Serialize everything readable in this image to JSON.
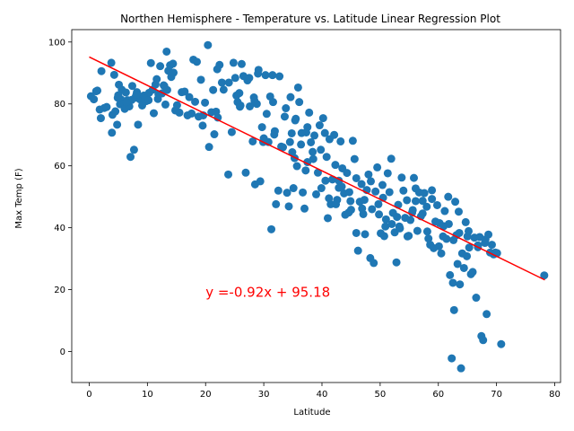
{
  "chart_data": {
    "type": "scatter",
    "title": "Northen Hemisphere - Temperature vs. Latitude Linear Regression Plot",
    "xlabel": "Latitude",
    "ylabel": "Max Temp (F)",
    "xlim": [
      -3,
      81
    ],
    "ylim": [
      -10,
      104
    ],
    "x_ticks": [
      0,
      10,
      20,
      30,
      40,
      50,
      60,
      70,
      80
    ],
    "y_ticks": [
      0,
      20,
      40,
      60,
      80,
      100
    ],
    "grid": false,
    "point_color": "#1f77b4",
    "line_color": "#ff0000",
    "regression": {
      "slope": -0.92,
      "intercept": 95.18,
      "x_range": [
        0,
        78.3
      ]
    },
    "annotation": {
      "text": "y =-0.92x + 95.18",
      "x": 20,
      "y": 19.5,
      "color": "#ff0000"
    },
    "points": [
      [
        0.3,
        82.5
      ],
      [
        0.8,
        81.5
      ],
      [
        1.4,
        84.3
      ],
      [
        1.8,
        78.2
      ],
      [
        2.0,
        75.4
      ],
      [
        2.1,
        90.6
      ],
      [
        2.6,
        78.7
      ],
      [
        3.8,
        93.3
      ],
      [
        3.9,
        70.7
      ],
      [
        4.0,
        76.5
      ],
      [
        4.3,
        89.4
      ],
      [
        4.5,
        77.6
      ],
      [
        4.8,
        73.3
      ],
      [
        4.9,
        82.0
      ],
      [
        5.1,
        86.2
      ],
      [
        5.3,
        79.9
      ],
      [
        5.5,
        81.4
      ],
      [
        5.6,
        84.6
      ],
      [
        5.8,
        80.0
      ],
      [
        6.1,
        78.4
      ],
      [
        6.3,
        83.7
      ],
      [
        6.6,
        81.2
      ],
      [
        6.9,
        79.2
      ],
      [
        7.1,
        62.9
      ],
      [
        7.3,
        81.3
      ],
      [
        7.4,
        85.8
      ],
      [
        7.7,
        65.2
      ],
      [
        8.2,
        83.8
      ],
      [
        8.4,
        73.3
      ],
      [
        8.7,
        81.5
      ],
      [
        9.1,
        79.5
      ],
      [
        9.4,
        82.7
      ],
      [
        9.8,
        80.9
      ],
      [
        10.3,
        83.6
      ],
      [
        10.6,
        93.2
      ],
      [
        10.9,
        84.6
      ],
      [
        11.1,
        77.0
      ],
      [
        11.4,
        86.3
      ],
      [
        11.6,
        88.0
      ],
      [
        11.8,
        81.6
      ],
      [
        12.2,
        92.2
      ],
      [
        12.5,
        83.4
      ],
      [
        12.8,
        86.0
      ],
      [
        13.1,
        79.8
      ],
      [
        13.3,
        96.9
      ],
      [
        13.6,
        90.7
      ],
      [
        13.9,
        92.5
      ],
      [
        14.1,
        88.7
      ],
      [
        14.4,
        93.0
      ],
      [
        14.8,
        77.9
      ],
      [
        15.1,
        79.6
      ],
      [
        15.5,
        77.2
      ],
      [
        15.9,
        83.8
      ],
      [
        16.9,
        76.3
      ],
      [
        17.6,
        76.9
      ],
      [
        17.9,
        94.3
      ],
      [
        18.2,
        80.7
      ],
      [
        18.5,
        93.6
      ],
      [
        18.8,
        75.9
      ],
      [
        19.2,
        87.8
      ],
      [
        19.5,
        73.0
      ],
      [
        19.9,
        80.4
      ],
      [
        20.4,
        99.0
      ],
      [
        20.6,
        66.1
      ],
      [
        21.0,
        77.3
      ],
      [
        21.3,
        84.5
      ],
      [
        21.8,
        77.5
      ],
      [
        22.1,
        75.6
      ],
      [
        22.4,
        92.6
      ],
      [
        22.8,
        86.9
      ],
      [
        23.1,
        84.6
      ],
      [
        23.9,
        57.2
      ],
      [
        24.5,
        70.9
      ],
      [
        24.8,
        93.3
      ],
      [
        25.1,
        88.4
      ],
      [
        25.3,
        82.7
      ],
      [
        25.5,
        80.6
      ],
      [
        25.9,
        79.1
      ],
      [
        26.2,
        92.9
      ],
      [
        26.5,
        89.0
      ],
      [
        26.9,
        57.8
      ],
      [
        27.2,
        87.6
      ],
      [
        27.6,
        79.2
      ],
      [
        28.1,
        67.9
      ],
      [
        28.3,
        82.1
      ],
      [
        28.5,
        54.0
      ],
      [
        28.8,
        80.0
      ],
      [
        29.1,
        91.0
      ],
      [
        29.4,
        55.0
      ],
      [
        29.7,
        72.5
      ],
      [
        29.9,
        67.7
      ],
      [
        30.3,
        89.3
      ],
      [
        30.5,
        76.8
      ],
      [
        30.8,
        67.7
      ],
      [
        31.1,
        82.4
      ],
      [
        31.3,
        39.5
      ],
      [
        31.5,
        89.3
      ],
      [
        31.9,
        71.2
      ],
      [
        32.1,
        47.6
      ],
      [
        32.5,
        52.0
      ],
      [
        32.7,
        88.9
      ],
      [
        33.3,
        66.0
      ],
      [
        33.6,
        75.9
      ],
      [
        33.8,
        78.6
      ],
      [
        34.0,
        51.3
      ],
      [
        34.3,
        46.9
      ],
      [
        34.6,
        82.2
      ],
      [
        34.8,
        70.5
      ],
      [
        35.1,
        52.8
      ],
      [
        35.3,
        62.5
      ],
      [
        35.5,
        75.2
      ],
      [
        35.7,
        59.9
      ],
      [
        35.9,
        85.3
      ],
      [
        36.1,
        80.6
      ],
      [
        36.4,
        66.9
      ],
      [
        36.7,
        51.4
      ],
      [
        37.0,
        46.2
      ],
      [
        37.3,
        70.8
      ],
      [
        37.5,
        61.2
      ],
      [
        37.8,
        77.2
      ],
      [
        38.1,
        67.6
      ],
      [
        38.4,
        64.5
      ],
      [
        38.7,
        69.8
      ],
      [
        39.0,
        50.8
      ],
      [
        39.3,
        57.8
      ],
      [
        39.6,
        73.1
      ],
      [
        39.9,
        52.8
      ],
      [
        40.2,
        75.4
      ],
      [
        40.5,
        70.6
      ],
      [
        40.8,
        62.9
      ],
      [
        41.0,
        43.1
      ],
      [
        41.3,
        68.6
      ],
      [
        41.5,
        47.6
      ],
      [
        41.8,
        55.6
      ],
      [
        42.1,
        70.0
      ],
      [
        42.3,
        60.3
      ],
      [
        42.6,
        49.0
      ],
      [
        42.9,
        55.2
      ],
      [
        43.2,
        67.9
      ],
      [
        43.5,
        59.2
      ],
      [
        43.8,
        51.1
      ],
      [
        44.0,
        44.2
      ],
      [
        44.3,
        57.7
      ],
      [
        44.6,
        44.9
      ],
      [
        44.9,
        48.6
      ],
      [
        45.3,
        68.1
      ],
      [
        45.6,
        62.2
      ],
      [
        45.9,
        38.3
      ],
      [
        46.2,
        32.6
      ],
      [
        46.5,
        48.4
      ],
      [
        46.8,
        54.1
      ],
      [
        47.1,
        44.4
      ],
      [
        47.4,
        37.9
      ],
      [
        47.7,
        52.2
      ],
      [
        48.0,
        57.2
      ],
      [
        48.3,
        30.2
      ],
      [
        48.6,
        46.0
      ],
      [
        48.9,
        28.6
      ],
      [
        49.2,
        51.7
      ],
      [
        49.5,
        59.5
      ],
      [
        49.8,
        44.3
      ],
      [
        50.1,
        38.2
      ],
      [
        50.4,
        53.8
      ],
      [
        50.7,
        37.3
      ],
      [
        51.0,
        42.7
      ],
      [
        51.3,
        57.6
      ],
      [
        51.6,
        51.5
      ],
      [
        51.9,
        62.3
      ],
      [
        52.2,
        44.8
      ],
      [
        52.5,
        38.5
      ],
      [
        52.8,
        28.8
      ],
      [
        53.1,
        47.4
      ],
      [
        53.4,
        39.8
      ],
      [
        53.7,
        56.2
      ],
      [
        54.0,
        52.0
      ],
      [
        54.3,
        43.2
      ],
      [
        54.6,
        48.9
      ],
      [
        54.9,
        37.4
      ],
      [
        55.2,
        42.5
      ],
      [
        55.5,
        44.9
      ],
      [
        55.8,
        56.1
      ],
      [
        56.1,
        52.7
      ],
      [
        56.4,
        39.0
      ],
      [
        56.7,
        51.4
      ],
      [
        57.0,
        43.7
      ],
      [
        57.3,
        48.7
      ],
      [
        57.6,
        51.2
      ],
      [
        58.0,
        46.8
      ],
      [
        58.3,
        36.5
      ],
      [
        58.6,
        34.5
      ],
      [
        58.9,
        52.1
      ],
      [
        59.2,
        33.4
      ],
      [
        59.5,
        42.0
      ],
      [
        59.8,
        47.3
      ],
      [
        60.1,
        34.0
      ],
      [
        60.5,
        31.7
      ],
      [
        60.8,
        37.2
      ],
      [
        61.1,
        45.4
      ],
      [
        61.4,
        36.4
      ],
      [
        61.7,
        50.0
      ],
      [
        62.0,
        24.7
      ],
      [
        62.3,
        -2.2
      ],
      [
        62.5,
        22.2
      ],
      [
        62.7,
        13.4
      ],
      [
        62.9,
        48.4
      ],
      [
        63.1,
        37.6
      ],
      [
        63.3,
        28.3
      ],
      [
        63.5,
        45.2
      ],
      [
        63.7,
        21.7
      ],
      [
        63.9,
        -5.4
      ],
      [
        64.1,
        31.7
      ],
      [
        64.4,
        27.0
      ],
      [
        64.7,
        41.8
      ],
      [
        65.0,
        37.2
      ],
      [
        65.3,
        33.6
      ],
      [
        65.6,
        25.0
      ],
      [
        65.9,
        25.7
      ],
      [
        66.2,
        36.8
      ],
      [
        66.5,
        17.4
      ],
      [
        66.8,
        34.3
      ],
      [
        67.1,
        37.0
      ],
      [
        67.4,
        5.0
      ],
      [
        67.7,
        3.7
      ],
      [
        68.0,
        35.1
      ],
      [
        68.3,
        12.1
      ],
      [
        68.6,
        37.8
      ],
      [
        68.9,
        32.0
      ],
      [
        69.2,
        34.5
      ],
      [
        69.5,
        31.4
      ],
      [
        69.8,
        32.0
      ],
      [
        70.1,
        31.8
      ],
      [
        70.8,
        2.4
      ],
      [
        78.2,
        24.6
      ],
      [
        3.0,
        79.0
      ],
      [
        6.4,
        80.6
      ],
      [
        7.9,
        82.0
      ],
      [
        9.6,
        81.7
      ],
      [
        11.9,
        83.1
      ],
      [
        12.9,
        85.8
      ],
      [
        14.5,
        90.1
      ],
      [
        16.4,
        84.0
      ],
      [
        19.6,
        76.3
      ],
      [
        22.0,
        91.2
      ],
      [
        24.0,
        86.9
      ],
      [
        26.0,
        79.5
      ],
      [
        27.5,
        88.4
      ],
      [
        29.0,
        89.8
      ],
      [
        30.0,
        68.9
      ],
      [
        31.6,
        80.6
      ],
      [
        33.0,
        66.2
      ],
      [
        34.5,
        67.7
      ],
      [
        35.4,
        74.7
      ],
      [
        36.5,
        70.6
      ],
      [
        37.5,
        72.5
      ],
      [
        38.5,
        62.2
      ],
      [
        39.8,
        65.2
      ],
      [
        41.2,
        49.5
      ],
      [
        42.4,
        47.6
      ],
      [
        43.4,
        53.3
      ],
      [
        44.7,
        51.5
      ],
      [
        45.9,
        56.0
      ],
      [
        46.9,
        46.2
      ],
      [
        48.4,
        55.0
      ],
      [
        49.7,
        47.6
      ],
      [
        50.9,
        40.4
      ],
      [
        52.0,
        41.2
      ],
      [
        53.3,
        40.4
      ],
      [
        54.7,
        37.2
      ],
      [
        56.1,
        48.6
      ],
      [
        57.3,
        44.6
      ],
      [
        58.9,
        49.3
      ],
      [
        60.2,
        41.5
      ],
      [
        61.8,
        41.2
      ],
      [
        63.6,
        38.3
      ],
      [
        64.9,
        30.8
      ],
      [
        66.8,
        33.7
      ],
      [
        68.1,
        36.2
      ],
      [
        1.2,
        84.1
      ],
      [
        5.0,
        82.8
      ],
      [
        8.1,
        83.0
      ],
      [
        10.2,
        81.2
      ],
      [
        13.4,
        84.5
      ],
      [
        17.2,
        82.2
      ],
      [
        21.5,
        70.2
      ],
      [
        25.8,
        83.5
      ],
      [
        28.4,
        81.0
      ],
      [
        31.8,
        70.1
      ],
      [
        34.9,
        64.4
      ],
      [
        37.2,
        58.5
      ],
      [
        40.6,
        55.2
      ],
      [
        42.9,
        52.9
      ],
      [
        45.0,
        45.8
      ],
      [
        47.3,
        49.0
      ],
      [
        50.5,
        49.7
      ],
      [
        52.9,
        43.5
      ],
      [
        55.6,
        45.7
      ],
      [
        58.1,
        38.8
      ],
      [
        60.9,
        40.5
      ],
      [
        62.6,
        36.0
      ],
      [
        65.2,
        38.9
      ],
      [
        69.6,
        31.5
      ]
    ]
  }
}
